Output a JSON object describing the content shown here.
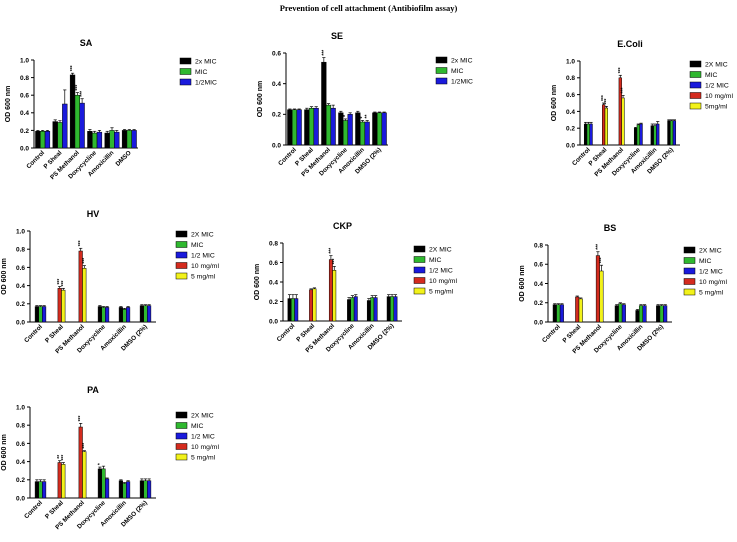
{
  "page": {
    "title": "Prevention of cell attachment (Antibiofilm assay)"
  },
  "colors": {
    "2x MIC": "#000000",
    "2X MIC": "#000000",
    "MIC": "#2fb82f",
    "1/2MIC": "#1a1adc",
    "1/2 MIC": "#1a1adc",
    "10 mg/ml": "#d42b1e",
    "5 mg/ml": "#f2f21a",
    "5mg/ml": "#f2f21a"
  },
  "chart_data": [
    {
      "type": "bar",
      "title": "SA",
      "ylabel": "OD 600  nm",
      "ylim": [
        0,
        1.0
      ],
      "yticks": [
        "0.0",
        "0.2",
        "0.4",
        "0.6",
        "0.8",
        "1.0"
      ],
      "categories": [
        "Control",
        "P Sheal",
        "PS Methanol",
        "Doxycycline",
        "Amoxicillin",
        "DMSO"
      ],
      "series": [
        {
          "name": "2x MIC",
          "values": [
            0.19,
            0.3,
            0.83,
            0.19,
            0.17,
            0.2
          ],
          "errors": [
            0.01,
            0.02,
            0.02,
            0.02,
            0.02,
            0.01
          ]
        },
        {
          "name": "MIC",
          "values": [
            0.19,
            0.29,
            0.6,
            0.17,
            0.2,
            0.2
          ],
          "errors": [
            0.01,
            0.02,
            0.03,
            0.02,
            0.03,
            0.01
          ]
        },
        {
          "name": "1/2MIC",
          "values": [
            0.19,
            0.5,
            0.51,
            0.18,
            0.18,
            0.2
          ],
          "errors": [
            0.01,
            0.16,
            0.05,
            0.02,
            0.02,
            0.01
          ]
        }
      ],
      "annotations": [
        {
          "category": 2,
          "series": 0,
          "text": "***"
        },
        {
          "category": 2,
          "series": 1,
          "text": "***"
        },
        {
          "category": 2,
          "series": 2,
          "text": "***"
        }
      ]
    },
    {
      "type": "bar",
      "title": "SE",
      "ylabel": "OD 600  nm",
      "ylim": [
        0,
        0.6
      ],
      "yticks": [
        "0.0",
        "0.2",
        "0.4",
        "0.6"
      ],
      "categories": [
        "Control",
        "P Sheal",
        "PS Methanol",
        "Doxycycline",
        "Amoxicillin",
        "DMSO (2%)"
      ],
      "series": [
        {
          "name": "2x MIC",
          "values": [
            0.23,
            0.23,
            0.54,
            0.21,
            0.21,
            0.21
          ],
          "errors": [
            0.005,
            0.01,
            0.03,
            0.01,
            0.01,
            0.005
          ]
        },
        {
          "name": "MIC",
          "values": [
            0.23,
            0.24,
            0.26,
            0.16,
            0.15,
            0.21
          ],
          "errors": [
            0.005,
            0.01,
            0.01,
            0.01,
            0.01,
            0.005
          ]
        },
        {
          "name": "1/2MIC",
          "values": [
            0.23,
            0.24,
            0.24,
            0.2,
            0.15,
            0.21
          ],
          "errors": [
            0.005,
            0.01,
            0.02,
            0.01,
            0.01,
            0.005
          ]
        }
      ],
      "annotations": [
        {
          "category": 2,
          "series": 0,
          "text": "***"
        },
        {
          "category": 3,
          "series": 1,
          "text": "*"
        },
        {
          "category": 4,
          "series": 1,
          "text": "*"
        },
        {
          "category": 4,
          "series": 2,
          "text": "**"
        }
      ]
    },
    {
      "type": "bar",
      "title": "E.Coli",
      "ylabel": "OD 600  nm",
      "ylim": [
        0,
        1.0
      ],
      "yticks": [
        "0.0",
        "0.2",
        "0.4",
        "0.6",
        "0.8",
        "1.0"
      ],
      "categories": [
        "Control",
        "P Sheal",
        "PS Methanol",
        "Doxycycline",
        "Amoxicillin",
        "DMSO (2%)"
      ],
      "series": [
        {
          "name": "2X MIC",
          "values": [
            0.25,
            null,
            null,
            0.2,
            0.23,
            0.29
          ],
          "errors": [
            0.02,
            0,
            0,
            0.01,
            0.02,
            0.01
          ]
        },
        {
          "name": "MIC",
          "values": [
            0.25,
            null,
            null,
            0.24,
            0.23,
            0.29
          ],
          "errors": [
            0.02,
            0,
            0,
            0.01,
            0.02,
            0.01
          ]
        },
        {
          "name": "1/2 MIC",
          "values": [
            0.25,
            null,
            null,
            0.25,
            0.25,
            0.29
          ],
          "errors": [
            0.02,
            0,
            0,
            0.01,
            0.03,
            0.01
          ]
        },
        {
          "name": "10 mg/ml",
          "values": [
            null,
            0.48,
            0.8,
            null,
            null,
            null
          ],
          "errors": [
            0,
            0.02,
            0.03,
            0,
            0,
            0
          ]
        },
        {
          "name": "5mg/ml",
          "values": [
            null,
            0.44,
            0.56,
            null,
            null,
            null
          ],
          "errors": [
            0,
            0.02,
            0.03,
            0,
            0,
            0
          ]
        }
      ],
      "annotations": [
        {
          "category": 1,
          "series": 3,
          "text": "***"
        },
        {
          "category": 1,
          "series": 4,
          "text": "***"
        },
        {
          "category": 2,
          "series": 3,
          "text": "***"
        },
        {
          "category": 2,
          "series": 4,
          "text": "***"
        }
      ]
    },
    {
      "type": "bar",
      "title": "HV",
      "ylabel": "OD 600  nm",
      "ylim": [
        0,
        1.0
      ],
      "yticks": [
        "0.0",
        "0.2",
        "0.4",
        "0.6",
        "0.8",
        "1.0"
      ],
      "categories": [
        "Control",
        "P Sheal",
        "PS Methanol",
        "Doxycycline",
        "Amoxicillin",
        "DMSO (2%)"
      ],
      "series": [
        {
          "name": "2X MIC",
          "values": [
            0.17,
            null,
            null,
            0.17,
            0.16,
            0.18
          ],
          "errors": [
            0.01,
            0,
            0,
            0.01,
            0.01,
            0.01
          ]
        },
        {
          "name": "MIC",
          "values": [
            0.17,
            null,
            null,
            0.16,
            0.14,
            0.18
          ],
          "errors": [
            0.01,
            0,
            0,
            0.01,
            0.01,
            0.01
          ]
        },
        {
          "name": "1/2 MIC",
          "values": [
            0.17,
            null,
            null,
            0.16,
            0.16,
            0.18
          ],
          "errors": [
            0.01,
            0,
            0,
            0.01,
            0.01,
            0.01
          ]
        },
        {
          "name": "10 mg/ml",
          "values": [
            null,
            0.37,
            0.78,
            null,
            null,
            null
          ],
          "errors": [
            0,
            0.02,
            0.03,
            0,
            0,
            0
          ]
        },
        {
          "name": "5 mg/ml",
          "values": [
            null,
            0.35,
            0.59,
            null,
            null,
            null
          ],
          "errors": [
            0,
            0.02,
            0.03,
            0,
            0,
            0
          ]
        }
      ],
      "annotations": [
        {
          "category": 1,
          "series": 3,
          "text": "***"
        },
        {
          "category": 1,
          "series": 4,
          "text": "***"
        },
        {
          "category": 2,
          "series": 3,
          "text": "***"
        },
        {
          "category": 2,
          "series": 4,
          "text": "***"
        }
      ]
    },
    {
      "type": "bar",
      "title": "CKP",
      "ylabel": "OD 600  nm",
      "ylim": [
        0,
        0.8
      ],
      "yticks": [
        "0.0",
        "0.2",
        "0.4",
        "0.6",
        "0.8"
      ],
      "categories": [
        "Control",
        "P Sheal",
        "PS Methanol",
        "Doxycycline",
        "Amoxicillin",
        "DMSO (2%)"
      ],
      "series": [
        {
          "name": "2X MIC",
          "values": [
            0.23,
            null,
            null,
            0.22,
            0.21,
            0.25
          ],
          "errors": [
            0.04,
            0,
            0,
            0.02,
            0.02,
            0.02
          ]
        },
        {
          "name": "MIC",
          "values": [
            0.23,
            null,
            null,
            0.24,
            0.24,
            0.25
          ],
          "errors": [
            0.04,
            0,
            0,
            0.02,
            0.02,
            0.02
          ]
        },
        {
          "name": "1/2 MIC",
          "values": [
            0.23,
            null,
            null,
            0.25,
            0.24,
            0.25
          ],
          "errors": [
            0.04,
            0,
            0,
            0.02,
            0.02,
            0.02
          ]
        },
        {
          "name": "10 mg/ml",
          "values": [
            null,
            0.32,
            0.63,
            null,
            null,
            null
          ],
          "errors": [
            0,
            0.01,
            0.04,
            0,
            0,
            0
          ]
        },
        {
          "name": "5 mg/ml",
          "values": [
            null,
            0.33,
            0.52,
            null,
            null,
            null
          ],
          "errors": [
            0,
            0.01,
            0.04,
            0,
            0,
            0
          ]
        }
      ],
      "annotations": [
        {
          "category": 2,
          "series": 3,
          "text": "***"
        },
        {
          "category": 2,
          "series": 4,
          "text": "***"
        }
      ]
    },
    {
      "type": "bar",
      "title": "BS",
      "ylabel": "OD 600  nm",
      "ylim": [
        0,
        0.8
      ],
      "yticks": [
        "0.0",
        "0.2",
        "0.4",
        "0.6",
        "0.8"
      ],
      "categories": [
        "Control",
        "P Sheal",
        "PS Methanol",
        "Doxycycline",
        "Amoxicillin",
        "DMSO (2%)"
      ],
      "series": [
        {
          "name": "2X MIC",
          "values": [
            0.18,
            null,
            null,
            0.17,
            0.12,
            0.17
          ],
          "errors": [
            0.01,
            0,
            0,
            0.01,
            0.01,
            0.01
          ]
        },
        {
          "name": "MIC",
          "values": [
            0.18,
            null,
            null,
            0.19,
            0.17,
            0.17
          ],
          "errors": [
            0.01,
            0,
            0,
            0.01,
            0.01,
            0.01
          ]
        },
        {
          "name": "1/2 MIC",
          "values": [
            0.18,
            null,
            null,
            0.18,
            0.17,
            0.17
          ],
          "errors": [
            0.01,
            0,
            0,
            0.01,
            0.01,
            0.01
          ]
        },
        {
          "name": "10 mg/ml",
          "values": [
            null,
            0.26,
            0.69,
            null,
            null,
            null
          ],
          "errors": [
            0,
            0.01,
            0.04,
            0,
            0,
            0
          ]
        },
        {
          "name": "5 mg/ml",
          "values": [
            null,
            0.24,
            0.53,
            null,
            null,
            null
          ],
          "errors": [
            0,
            0.01,
            0.06,
            0,
            0,
            0
          ]
        }
      ],
      "annotations": [
        {
          "category": 2,
          "series": 3,
          "text": "***"
        },
        {
          "category": 2,
          "series": 4,
          "text": "***"
        }
      ]
    },
    {
      "type": "bar",
      "title": "PA",
      "ylabel": "OD 600  nm",
      "ylim": [
        0,
        1.0
      ],
      "yticks": [
        "0.0",
        "0.2",
        "0.4",
        "0.6",
        "0.8",
        "1.0"
      ],
      "categories": [
        "Control",
        "P Sheal",
        "PS Methanol",
        "Doxycycline",
        "Amoxicillin",
        "DMSO (2%)"
      ],
      "series": [
        {
          "name": "2X MIC",
          "values": [
            0.18,
            null,
            null,
            0.32,
            0.19,
            0.19
          ],
          "errors": [
            0.02,
            0,
            0,
            0.02,
            0.01,
            0.02
          ]
        },
        {
          "name": "MIC",
          "values": [
            0.18,
            null,
            null,
            0.32,
            0.16,
            0.19
          ],
          "errors": [
            0.02,
            0,
            0,
            0.03,
            0.01,
            0.02
          ]
        },
        {
          "name": "1/2 MIC",
          "values": [
            0.18,
            null,
            null,
            0.21,
            0.18,
            0.19
          ],
          "errors": [
            0.02,
            0,
            0,
            0.01,
            0.01,
            0.02
          ]
        },
        {
          "name": "10 mg/ml",
          "values": [
            null,
            0.39,
            0.78,
            null,
            null,
            null
          ],
          "errors": [
            0,
            0.02,
            0.04,
            0,
            0,
            0
          ]
        },
        {
          "name": "5 mg/ml",
          "values": [
            null,
            0.37,
            0.51,
            null,
            null,
            null
          ],
          "errors": [
            0,
            0.02,
            0.01,
            0,
            0,
            0
          ]
        }
      ],
      "annotations": [
        {
          "category": 1,
          "series": 3,
          "text": "**"
        },
        {
          "category": 1,
          "series": 4,
          "text": "***"
        },
        {
          "category": 2,
          "series": 3,
          "text": "***"
        },
        {
          "category": 2,
          "series": 4,
          "text": "***"
        },
        {
          "category": 3,
          "series": 0,
          "text": "*"
        }
      ]
    }
  ]
}
